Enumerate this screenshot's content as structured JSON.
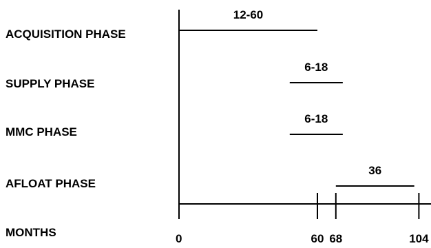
{
  "chart_data": {
    "type": "gantt",
    "phases": [
      {
        "name": "ACQUISITION PHASE",
        "label": "12-60",
        "start": 0,
        "end": 60
      },
      {
        "name": "SUPPLY PHASE",
        "label": "6-18",
        "start": 48,
        "end": 71
      },
      {
        "name": "MMC PHASE",
        "label": "6-18",
        "start": 48,
        "end": 71
      },
      {
        "name": "AFLOAT PHASE",
        "label": "36",
        "start": 68,
        "end": 102
      }
    ],
    "axis": {
      "label": "MONTHS",
      "ticks": [
        0,
        60,
        68,
        104
      ],
      "tick_labels": [
        "0",
        "60",
        "68",
        "104"
      ],
      "range": [
        0,
        106
      ]
    }
  }
}
